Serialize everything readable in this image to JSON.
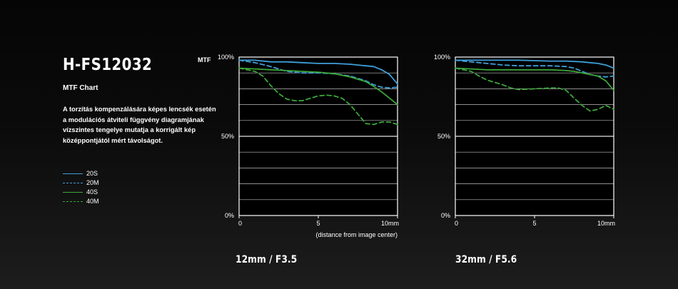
{
  "product": {
    "title": "H-FS12032",
    "subtitle": "MTF Chart",
    "description": "A torzítás kompenzálására képes lencsék esetén\na modulációs átviteli függvény diagramjának\nvízszintes tengelye mutatja a korrigált kép\nközéppontjától mért távolságot."
  },
  "colors": {
    "blue": "#3f9fd8",
    "green": "#3ca63a",
    "grid": "#bdbdbd",
    "axis": "#ffffff"
  },
  "legend": [
    {
      "label": "20S",
      "color": "#3f9fd8",
      "style": "solid"
    },
    {
      "label": "20M",
      "color": "#3f9fd8",
      "style": "dashed"
    },
    {
      "label": "40S",
      "color": "#3ca63a",
      "style": "solid"
    },
    {
      "label": "40M",
      "color": "#3ca63a",
      "style": "dashed"
    }
  ],
  "mtf_label": "MTF",
  "chart_data": [
    {
      "type": "line",
      "caption": "12mm / F3.5",
      "ylabel": "MTF",
      "xlabel": "(distance from image center)",
      "xlim": [
        0,
        10
      ],
      "ylim": [
        0,
        100
      ],
      "x_ticks": [
        "0",
        "5",
        "10mm"
      ],
      "y_ticks": [
        "100%",
        "50%",
        "0%"
      ],
      "grid_y": [
        10,
        20,
        30,
        40,
        50,
        60,
        70,
        80,
        90
      ],
      "series": [
        {
          "name": "20S",
          "style": "solid",
          "color": "#3f9fd8",
          "x": [
            0,
            1,
            2,
            3,
            4,
            5,
            6,
            7,
            7.5,
            8,
            8.5,
            9,
            9.5,
            10
          ],
          "y": [
            98,
            98,
            97,
            97,
            96.5,
            96,
            96,
            95.5,
            95,
            94.5,
            94,
            92,
            89,
            83
          ]
        },
        {
          "name": "20M",
          "style": "dashed",
          "color": "#3f9fd8",
          "x": [
            0,
            1,
            2,
            3,
            4,
            5,
            6,
            7,
            8,
            8.5,
            9,
            9.5,
            10
          ],
          "y": [
            98,
            96.5,
            94,
            91,
            90,
            90,
            89.5,
            88,
            85,
            82.5,
            81,
            80.5,
            81
          ]
        },
        {
          "name": "40S",
          "style": "solid",
          "color": "#3ca63a",
          "x": [
            0,
            1,
            2,
            3,
            4,
            5,
            6,
            7,
            8,
            8.5,
            9,
            9.5,
            10
          ],
          "y": [
            93,
            92.5,
            92,
            91.5,
            91,
            90.5,
            89.5,
            87.5,
            84.5,
            81.5,
            78,
            74,
            70
          ]
        },
        {
          "name": "40M",
          "style": "dashed",
          "color": "#3ca63a",
          "x": [
            0,
            1,
            1.5,
            2,
            2.5,
            3,
            3.5,
            4,
            4.5,
            5,
            5.5,
            6,
            6.5,
            7,
            7.5,
            8,
            8.5,
            9,
            9.5,
            10
          ],
          "y": [
            93,
            91,
            88,
            82,
            77,
            73.5,
            72.5,
            72.5,
            74,
            75.5,
            76,
            75.5,
            74,
            70,
            64,
            58,
            57.5,
            59,
            59,
            57.5
          ]
        }
      ]
    },
    {
      "type": "line",
      "caption": "32mm / F5.6",
      "xlim": [
        0,
        10
      ],
      "ylim": [
        0,
        100
      ],
      "x_ticks": [
        "0",
        "5",
        "10mm"
      ],
      "y_ticks": [
        "100%",
        "50%",
        "0%"
      ],
      "grid_y": [
        10,
        20,
        30,
        40,
        50,
        60,
        70,
        80,
        90
      ],
      "series": [
        {
          "name": "20S",
          "style": "solid",
          "color": "#3f9fd8",
          "x": [
            0,
            2,
            4,
            6,
            7,
            8,
            8.5,
            9,
            9.5,
            10
          ],
          "y": [
            98,
            98,
            98,
            97.5,
            97.5,
            97,
            96.5,
            96,
            95,
            93
          ]
        },
        {
          "name": "20M",
          "style": "dashed",
          "color": "#3f9fd8",
          "x": [
            0,
            1,
            2,
            3,
            4,
            5,
            6,
            7,
            7.5,
            8,
            8.5,
            9,
            9.5,
            10
          ],
          "y": [
            98,
            97,
            96,
            95,
            94.5,
            94.5,
            94.5,
            94,
            93,
            91,
            89,
            88,
            87.5,
            88
          ]
        },
        {
          "name": "40S",
          "style": "solid",
          "color": "#3ca63a",
          "x": [
            0,
            1,
            2,
            3,
            4,
            5,
            6,
            7,
            7.5,
            8,
            8.5,
            9,
            9.5,
            10
          ],
          "y": [
            93,
            92.5,
            92,
            92,
            92,
            92,
            92,
            91.5,
            91,
            90,
            89,
            88,
            85,
            79
          ]
        },
        {
          "name": "40M",
          "style": "dashed",
          "color": "#3ca63a",
          "x": [
            0,
            1,
            1.5,
            2,
            2.5,
            3,
            3.5,
            4,
            5,
            6,
            6.5,
            7,
            7.5,
            8,
            8.5,
            9,
            9.5,
            10
          ],
          "y": [
            93,
            91,
            88,
            85.5,
            84,
            82.5,
            80.5,
            79.5,
            80,
            80.5,
            80.5,
            79,
            74,
            69.5,
            66,
            67,
            69.5,
            67
          ]
        }
      ]
    }
  ]
}
